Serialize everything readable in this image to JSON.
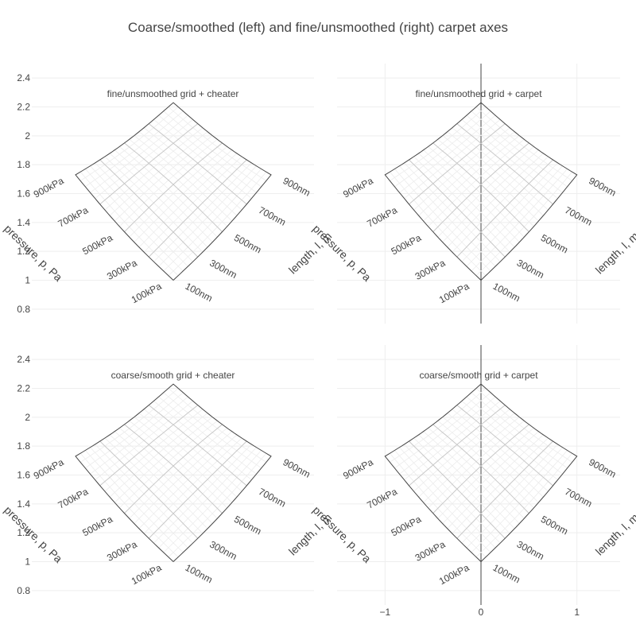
{
  "title": "Coarse/smoothed (left) and fine/unsmoothed (right) carpet axes",
  "chart_data": {
    "type": "carpet",
    "a_axis": {
      "title": "pressure, p, Pa",
      "values": [
        100,
        300,
        500,
        700,
        900
      ],
      "tick_labels": [
        "100kPa",
        "300kPa",
        "500kPa",
        "700kPa",
        "900kPa"
      ],
      "unit": "kPa"
    },
    "b_axis": {
      "title": "length, l, m",
      "values": [
        100,
        300,
        500,
        700,
        900
      ],
      "tick_labels": [
        "100nm",
        "300nm",
        "500nm",
        "700nm",
        "900nm"
      ],
      "unit": "nm"
    },
    "y_axis": {
      "range": [
        0.7,
        2.5
      ],
      "tick_values": [
        0.8,
        1,
        1.2,
        1.4,
        1.6,
        1.8,
        2,
        2.2,
        2.4
      ],
      "tick_labels": [
        "0.8",
        "1",
        "1.2",
        "1.4",
        "1.6",
        "1.8",
        "2",
        "2.2",
        "2.4"
      ]
    },
    "x_axis_carpet": {
      "range": [
        -1.5,
        1.45
      ],
      "tick_values": [
        -1,
        0,
        1
      ],
      "tick_labels": [
        "−1",
        "0",
        "1"
      ]
    },
    "corners": {
      "a_min_b_min": {
        "x": 0,
        "y": 1.0
      },
      "a_max_b_min": {
        "x": -1.0,
        "y": 1.73
      },
      "a_min_b_max": {
        "x": 1.0,
        "y": 1.73
      },
      "a_max_b_max": {
        "x": 0,
        "y": 2.23
      }
    },
    "subplots": [
      {
        "title": "fine/unsmoothed grid + cheater",
        "mode": "cheater"
      },
      {
        "title": "fine/unsmoothed grid + carpet",
        "mode": "carpet"
      },
      {
        "title": "coarse/smooth grid + cheater",
        "mode": "cheater"
      },
      {
        "title": "coarse/smooth grid + carpet",
        "mode": "carpet"
      }
    ]
  }
}
